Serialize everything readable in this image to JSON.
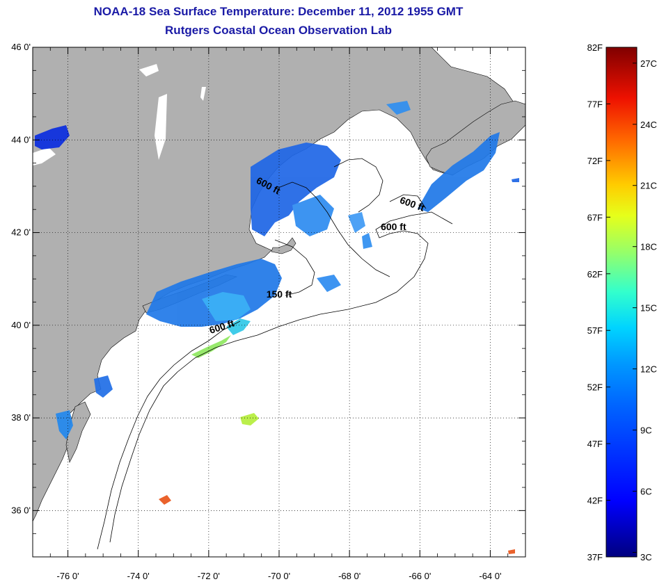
{
  "title_line1": "NOAA-18 Sea Surface Temperature:  December 11, 2012 1955 GMT",
  "title_line2": "Rutgers Coastal Ocean Observation Lab",
  "map": {
    "lon_range": [
      -77,
      -63
    ],
    "lat_range": [
      35,
      46
    ],
    "lon_ticks": [
      {
        "value": -76,
        "label": "-76 0'"
      },
      {
        "value": -74,
        "label": "-74 0'"
      },
      {
        "value": -72,
        "label": "-72 0'"
      },
      {
        "value": -70,
        "label": "-70 0'"
      },
      {
        "value": -68,
        "label": "-68 0'"
      },
      {
        "value": -66,
        "label": "-66 0'"
      },
      {
        "value": -64,
        "label": "-64 0'"
      }
    ],
    "lat_ticks": [
      {
        "value": 46,
        "label": "46 0'"
      },
      {
        "value": 44,
        "label": "44 0'"
      },
      {
        "value": 42,
        "label": "42 0'"
      },
      {
        "value": 40,
        "label": "40 0'"
      },
      {
        "value": 38,
        "label": "38 0'"
      },
      {
        "value": 36,
        "label": "36 0'"
      }
    ],
    "grid": true,
    "land_color": "#b0b0b0",
    "ocean_color": "#ffffff",
    "contour_labels": [
      {
        "text": "600 ft",
        "lon": -70.35,
        "lat": 42.95,
        "rotate": 28
      },
      {
        "text": "600 ft",
        "lon": -66.25,
        "lat": 42.55,
        "rotate": 20
      },
      {
        "text": "600 ft",
        "lon": -66.75,
        "lat": 42.05,
        "rotate": 0
      },
      {
        "text": "150 ft",
        "lon": -70.0,
        "lat": 40.6,
        "rotate": 0
      },
      {
        "text": "600 ft",
        "lon": -71.6,
        "lat": 39.9,
        "rotate": -18
      }
    ]
  },
  "colorbar": {
    "fahrenheit": [
      "82F",
      "77F",
      "72F",
      "67F",
      "62F",
      "57F",
      "52F",
      "47F",
      "42F",
      "37F"
    ],
    "celsius": [
      "27C",
      "24C",
      "21C",
      "18C",
      "15C",
      "12C",
      "9C",
      "6C",
      "3C"
    ],
    "range_f": [
      37,
      82
    ]
  }
}
